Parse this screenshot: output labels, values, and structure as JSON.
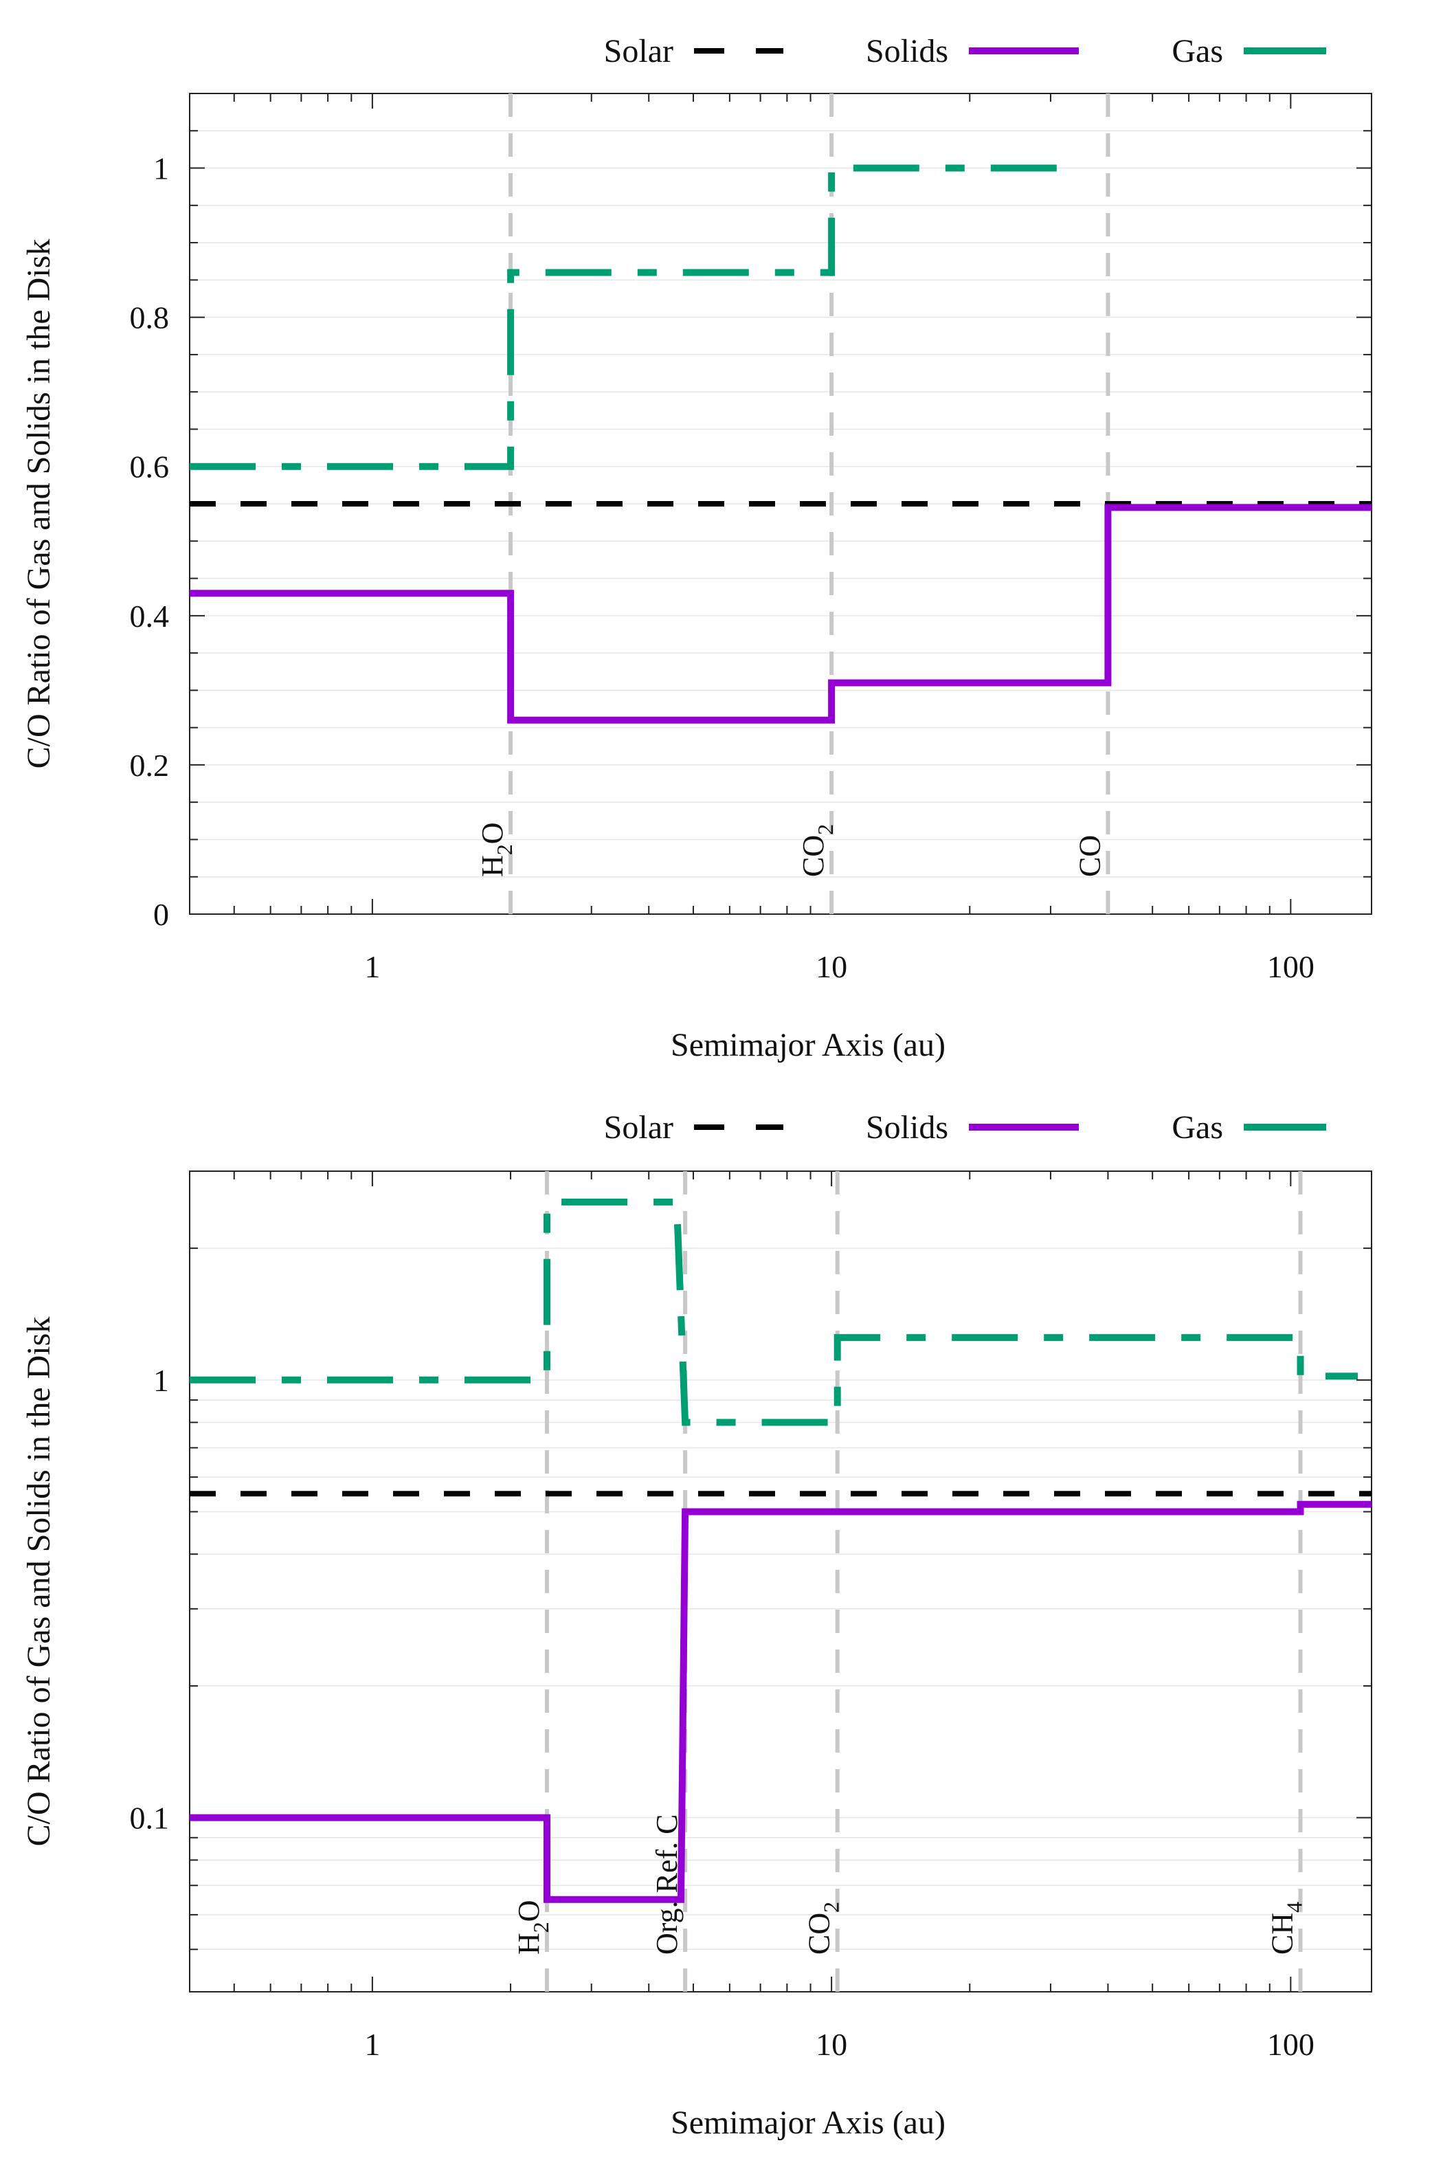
{
  "figure": {
    "colors": {
      "solar": "#000000",
      "solids": "#9400d3",
      "gas": "#009e73",
      "iceline": "#c8c8c8",
      "grid": "#e6e6e6",
      "frame": "#222222"
    }
  },
  "chart_data": [
    {
      "type": "line",
      "xscale": "log",
      "yscale": "linear",
      "xlim": [
        0.4,
        150
      ],
      "ylim": [
        0,
        1.1
      ],
      "xticks": [
        1,
        10,
        100
      ],
      "xtick_labels": [
        "1",
        "10",
        "100"
      ],
      "yticks": [
        0,
        0.2,
        0.4,
        0.6,
        0.8,
        1
      ],
      "ytick_labels": [
        "0",
        "0.2",
        "0.4",
        "0.6",
        "0.8",
        "1"
      ],
      "xlabel": "Semimajor Axis (au)",
      "ylabel": "C/O Ratio of Gas and Solids in the Disk",
      "legend": {
        "placement": "top",
        "entries": [
          {
            "name": "Solar",
            "style": "dashed"
          },
          {
            "name": "Solids",
            "style": "solid"
          },
          {
            "name": "Gas",
            "style": "dash-dot"
          }
        ]
      },
      "lines_vertical": [
        {
          "x": 2,
          "label_main": "H",
          "label_sub": "2",
          "label_tail": "O"
        },
        {
          "x": 10,
          "label_main": "CO",
          "label_sub": "2",
          "label_tail": ""
        },
        {
          "x": 40,
          "label_main": "CO",
          "label_sub": "",
          "label_tail": ""
        }
      ],
      "series": [
        {
          "name": "Solar",
          "x": [
            0.4,
            150
          ],
          "y": [
            0.55,
            0.55
          ]
        },
        {
          "name": "Solids",
          "x": [
            0.4,
            2,
            2,
            10,
            10,
            40,
            40,
            150
          ],
          "y": [
            0.43,
            0.43,
            0.26,
            0.26,
            0.31,
            0.31,
            0.545,
            0.545
          ]
        },
        {
          "name": "Gas",
          "x": [
            0.4,
            2,
            2,
            10,
            10,
            33
          ],
          "y": [
            0.6,
            0.6,
            0.86,
            0.86,
            1.0,
            1.0
          ]
        }
      ]
    },
    {
      "type": "line",
      "xscale": "log",
      "yscale": "log",
      "xlim": [
        0.4,
        150
      ],
      "ylim": [
        0.04,
        3.0
      ],
      "xticks": [
        1,
        10,
        100
      ],
      "xtick_labels": [
        "1",
        "10",
        "100"
      ],
      "yticks": [
        0.1,
        1
      ],
      "ytick_labels": [
        "0.1",
        "1"
      ],
      "xlabel": "Semimajor Axis (au)",
      "ylabel": "C/O Ratio of Gas and Solids in the Disk",
      "legend": {
        "placement": "top",
        "entries": [
          {
            "name": "Solar",
            "style": "dashed"
          },
          {
            "name": "Solids",
            "style": "solid"
          },
          {
            "name": "Gas",
            "style": "dash-dot"
          }
        ]
      },
      "lines_vertical": [
        {
          "x": 2.4,
          "label_main": "H",
          "label_sub": "2",
          "label_tail": "O"
        },
        {
          "x": 4.8,
          "label_main": "Org. Ref. C",
          "label_sub": "",
          "label_tail": ""
        },
        {
          "x": 10.3,
          "label_main": "CO",
          "label_sub": "2",
          "label_tail": ""
        },
        {
          "x": 105,
          "label_main": "CH",
          "label_sub": "4",
          "label_tail": ""
        }
      ],
      "series": [
        {
          "name": "Solar",
          "x": [
            0.4,
            150
          ],
          "y": [
            0.55,
            0.55
          ]
        },
        {
          "name": "Solids",
          "x": [
            0.4,
            2.4,
            2.4,
            4.7,
            4.8,
            105,
            105,
            150
          ],
          "y": [
            0.1,
            0.1,
            0.065,
            0.065,
            0.5,
            0.5,
            0.52,
            0.52
          ]
        },
        {
          "name": "Gas",
          "x": [
            0.4,
            2.4,
            2.4,
            4.6,
            4.8,
            10.3,
            10.3,
            105,
            105,
            140
          ],
          "y": [
            1.0,
            1.0,
            2.55,
            2.55,
            0.8,
            0.8,
            1.25,
            1.25,
            1.02,
            1.02
          ]
        }
      ]
    }
  ]
}
